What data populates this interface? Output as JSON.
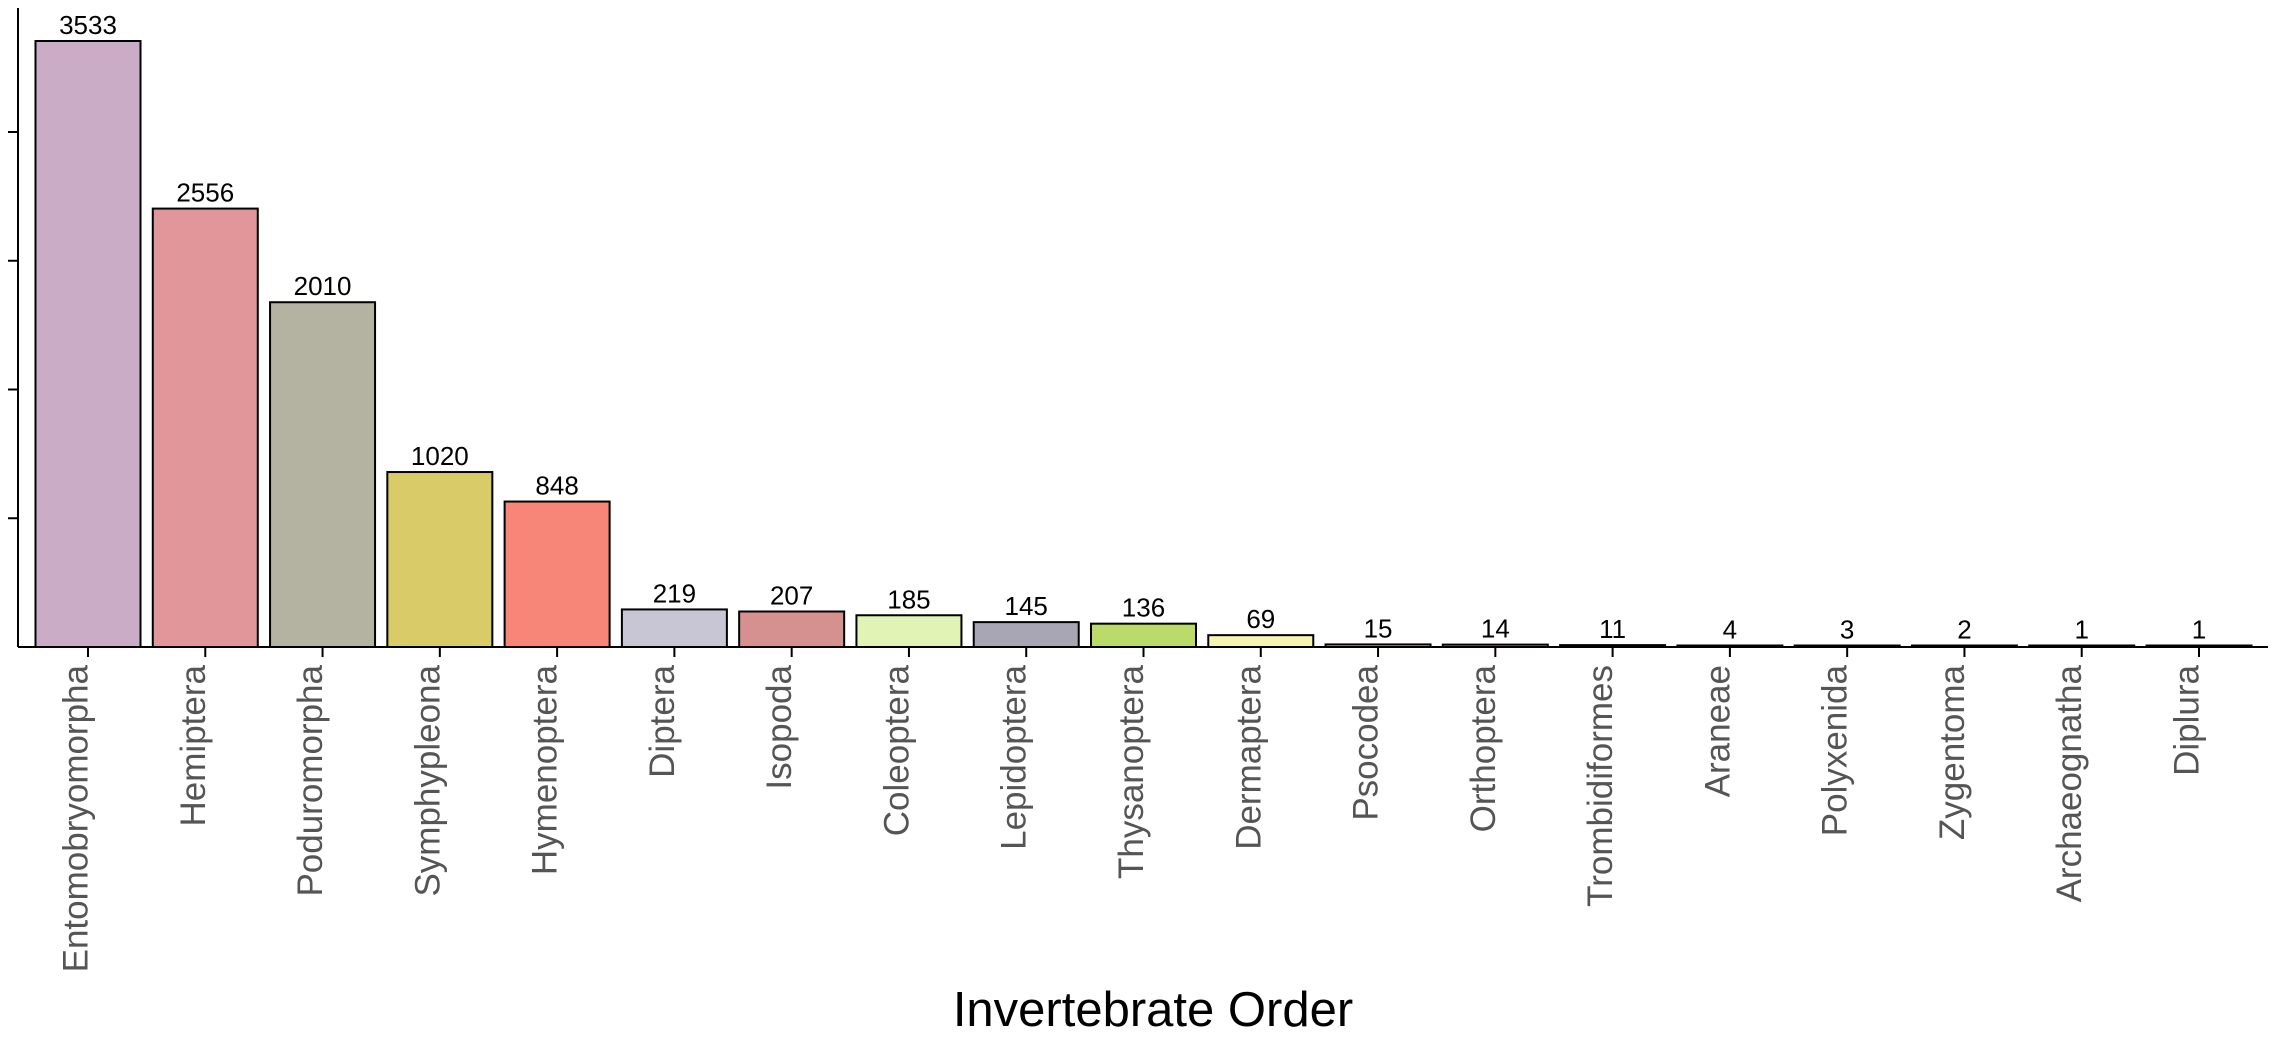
{
  "chart_data": {
    "type": "bar",
    "title": "",
    "xlabel": "Invertebrate Order",
    "ylabel": "",
    "ylim": [
      0,
      3533
    ],
    "y_ticks_labeled": false,
    "grid": false,
    "categories": [
      "Entomobryomorpha",
      "Hemiptera",
      "Poduromorpha",
      "Symphypleona",
      "Hymenoptera",
      "Diptera",
      "Isopoda",
      "Coleoptera",
      "Lepidoptera",
      "Thysanoptera",
      "Dermaptera",
      "Psocodea",
      "Orthoptera",
      "Trombidiformes",
      "Araneae",
      "Polyxenida",
      "Zygentoma",
      "Archaeognatha",
      "Diplura"
    ],
    "values": [
      3533,
      2556,
      2010,
      1020,
      848,
      219,
      207,
      185,
      145,
      136,
      69,
      15,
      14,
      11,
      4,
      3,
      2,
      1,
      1
    ],
    "colors": [
      "#cbacc7",
      "#e19799",
      "#b4b3a2",
      "#d8cb68",
      "#f78578",
      "#c8c6d5",
      "#d49190",
      "#e1f3b5",
      "#a8a5b4",
      "#bada6a",
      "#f6f5b1",
      "#e9c8b6",
      "#d8b0ac",
      "#c9d6c0",
      "#dcd0d6",
      "#cfd2b7",
      "#e7d3bc",
      "#cfcfd6",
      "#d9d9d9"
    ]
  }
}
